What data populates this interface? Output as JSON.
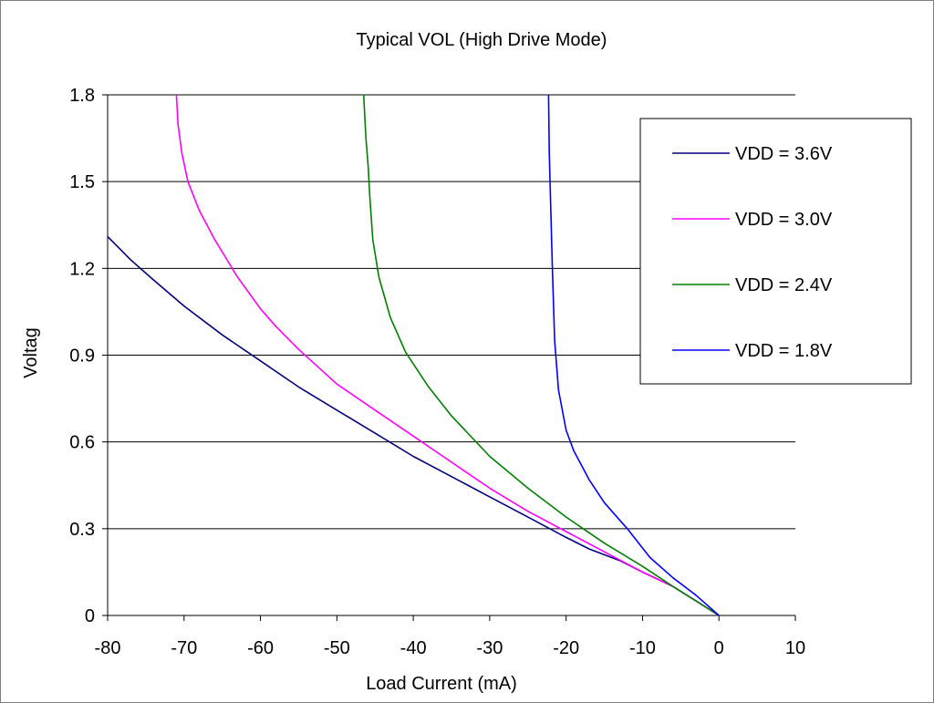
{
  "chart_data": {
    "type": "line",
    "title": "Typical VOL (High Drive Mode)",
    "xlabel": "Load Current (mA)",
    "ylabel": "Voltag",
    "xlim": [
      -80,
      10
    ],
    "ylim": [
      0,
      1.8
    ],
    "x_ticks": [
      "-80",
      "-70",
      "-60",
      "-50",
      "-40",
      "-30",
      "-20",
      "-10",
      "0",
      "10"
    ],
    "y_ticks": [
      "0",
      "0.3",
      "0.6",
      "0.9",
      "1.2",
      "1.5",
      "1.8"
    ],
    "grid": "horizontal",
    "legend_position": "right",
    "series": [
      {
        "name": "VDD = 3.6V",
        "color": "#000080",
        "points": [
          [
            0,
            0
          ],
          [
            -3,
            0.05
          ],
          [
            -6,
            0.1
          ],
          [
            -10,
            0.15
          ],
          [
            -13,
            0.19
          ],
          [
            -17,
            0.23
          ],
          [
            -20,
            0.27
          ],
          [
            -25,
            0.34
          ],
          [
            -30,
            0.41
          ],
          [
            -35,
            0.48
          ],
          [
            -40,
            0.55
          ],
          [
            -45,
            0.63
          ],
          [
            -50,
            0.71
          ],
          [
            -55,
            0.79
          ],
          [
            -60,
            0.88
          ],
          [
            -65,
            0.97
          ],
          [
            -70,
            1.07
          ],
          [
            -74,
            1.16
          ],
          [
            -77,
            1.23
          ],
          [
            -80,
            1.31
          ]
        ]
      },
      {
        "name": "VDD = 3.0V",
        "color": "#ff00ff",
        "points": [
          [
            0,
            0
          ],
          [
            -3,
            0.05
          ],
          [
            -6,
            0.1
          ],
          [
            -10,
            0.15
          ],
          [
            -15,
            0.22
          ],
          [
            -20,
            0.29
          ],
          [
            -25,
            0.36
          ],
          [
            -30,
            0.44
          ],
          [
            -35,
            0.53
          ],
          [
            -40,
            0.62
          ],
          [
            -45,
            0.71
          ],
          [
            -50,
            0.8
          ],
          [
            -55,
            0.92
          ],
          [
            -58,
            1.0
          ],
          [
            -60,
            1.06
          ],
          [
            -63,
            1.17
          ],
          [
            -66,
            1.3
          ],
          [
            -68,
            1.4
          ],
          [
            -69.5,
            1.5
          ],
          [
            -70.3,
            1.6
          ],
          [
            -70.8,
            1.7
          ],
          [
            -71,
            1.8
          ]
        ]
      },
      {
        "name": "VDD = 2.4V",
        "color": "#008000",
        "points": [
          [
            0,
            0
          ],
          [
            -3,
            0.05
          ],
          [
            -6,
            0.1
          ],
          [
            -10,
            0.17
          ],
          [
            -15,
            0.25
          ],
          [
            -20,
            0.34
          ],
          [
            -25,
            0.44
          ],
          [
            -30,
            0.55
          ],
          [
            -35,
            0.69
          ],
          [
            -38,
            0.79
          ],
          [
            -41,
            0.91
          ],
          [
            -43,
            1.03
          ],
          [
            -44.5,
            1.17
          ],
          [
            -45.3,
            1.3
          ],
          [
            -45.7,
            1.45
          ],
          [
            -45.9,
            1.55
          ],
          [
            -46.2,
            1.65
          ],
          [
            -46.5,
            1.8
          ]
        ]
      },
      {
        "name": "VDD = 1.8V",
        "color": "#0000ff",
        "points": [
          [
            0,
            0
          ],
          [
            -3,
            0.07
          ],
          [
            -6,
            0.13
          ],
          [
            -9,
            0.2
          ],
          [
            -12,
            0.3
          ],
          [
            -15,
            0.39
          ],
          [
            -17,
            0.47
          ],
          [
            -19,
            0.57
          ],
          [
            -20,
            0.64
          ],
          [
            -21,
            0.78
          ],
          [
            -21.5,
            0.95
          ],
          [
            -21.8,
            1.2
          ],
          [
            -22,
            1.4
          ],
          [
            -22.2,
            1.6
          ],
          [
            -22.3,
            1.8
          ]
        ]
      }
    ]
  }
}
